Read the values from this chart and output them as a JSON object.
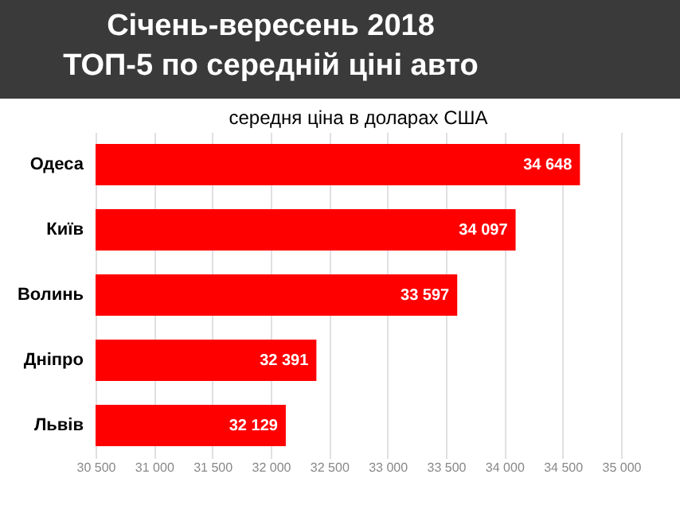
{
  "chart_data": {
    "type": "bar",
    "orientation": "horizontal",
    "title": "Січень-вересень 2018",
    "subtitle": "ТОП-5 по середній ціні авто",
    "annotations": [
      "середня ціна в доларах США"
    ],
    "categories": [
      "Одеса",
      "Київ",
      "Волинь",
      "Дніпро",
      "Львів"
    ],
    "values": [
      34648,
      34097,
      33597,
      32391,
      32129
    ],
    "value_labels": [
      "34 648",
      "34 097",
      "33 597",
      "32 391",
      "32 129"
    ],
    "color": "#ff0000",
    "xlim": [
      30500,
      35000
    ],
    "xticks": [
      {
        "value": 30500,
        "label": "30 500"
      },
      {
        "value": 31000,
        "label": "31 000"
      },
      {
        "value": 31500,
        "label": "31 500"
      },
      {
        "value": 32000,
        "label": "32 000"
      },
      {
        "value": 32500,
        "label": "32 500"
      },
      {
        "value": 33000,
        "label": "33 000"
      },
      {
        "value": 33500,
        "label": "33 500"
      },
      {
        "value": 34000,
        "label": "34 000"
      },
      {
        "value": 34500,
        "label": "34 500"
      },
      {
        "value": 35000,
        "label": "35 000"
      }
    ],
    "grid": "x"
  }
}
